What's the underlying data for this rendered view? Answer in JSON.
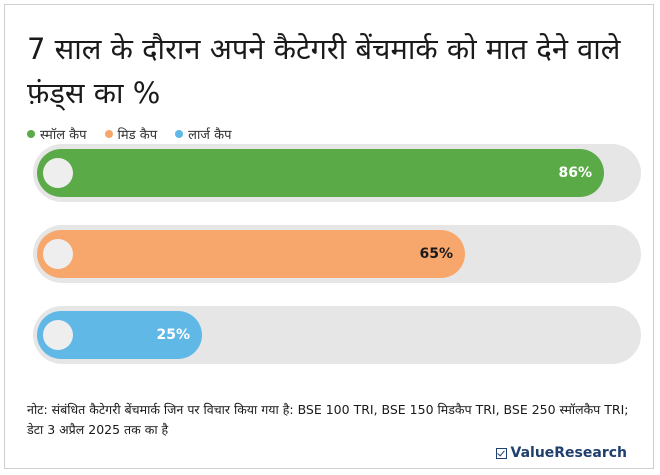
{
  "chart_data": {
    "type": "bar",
    "orientation": "horizontal",
    "title": "7 साल के दौरान अपने कैटेगरी बेंचमार्क को मात देने वाले फ़ंड्स का %",
    "categories": [
      "स्मॉल कैप",
      "मिड कैप",
      "लार्ज कैप"
    ],
    "values": [
      86,
      65,
      25
    ],
    "value_labels": [
      "86%",
      "65%",
      "25%"
    ],
    "colors": [
      "#5aab47",
      "#f7a76c",
      "#5fb8e6"
    ],
    "xlim": [
      0,
      100
    ],
    "legend_position": "top-left",
    "grid": false
  },
  "note": "नोट: संबंधित कैटेगरी बेंचमार्क जिन पर विचार किया गया है: BSE 100 TRI, BSE 150 मिडकैप TRI, BSE 250 स्मॉलकैप TRI; डेटा 3 अप्रैल 2025 तक का है",
  "brand": "ValueResearch",
  "brand_icon": "checkbox-icon"
}
